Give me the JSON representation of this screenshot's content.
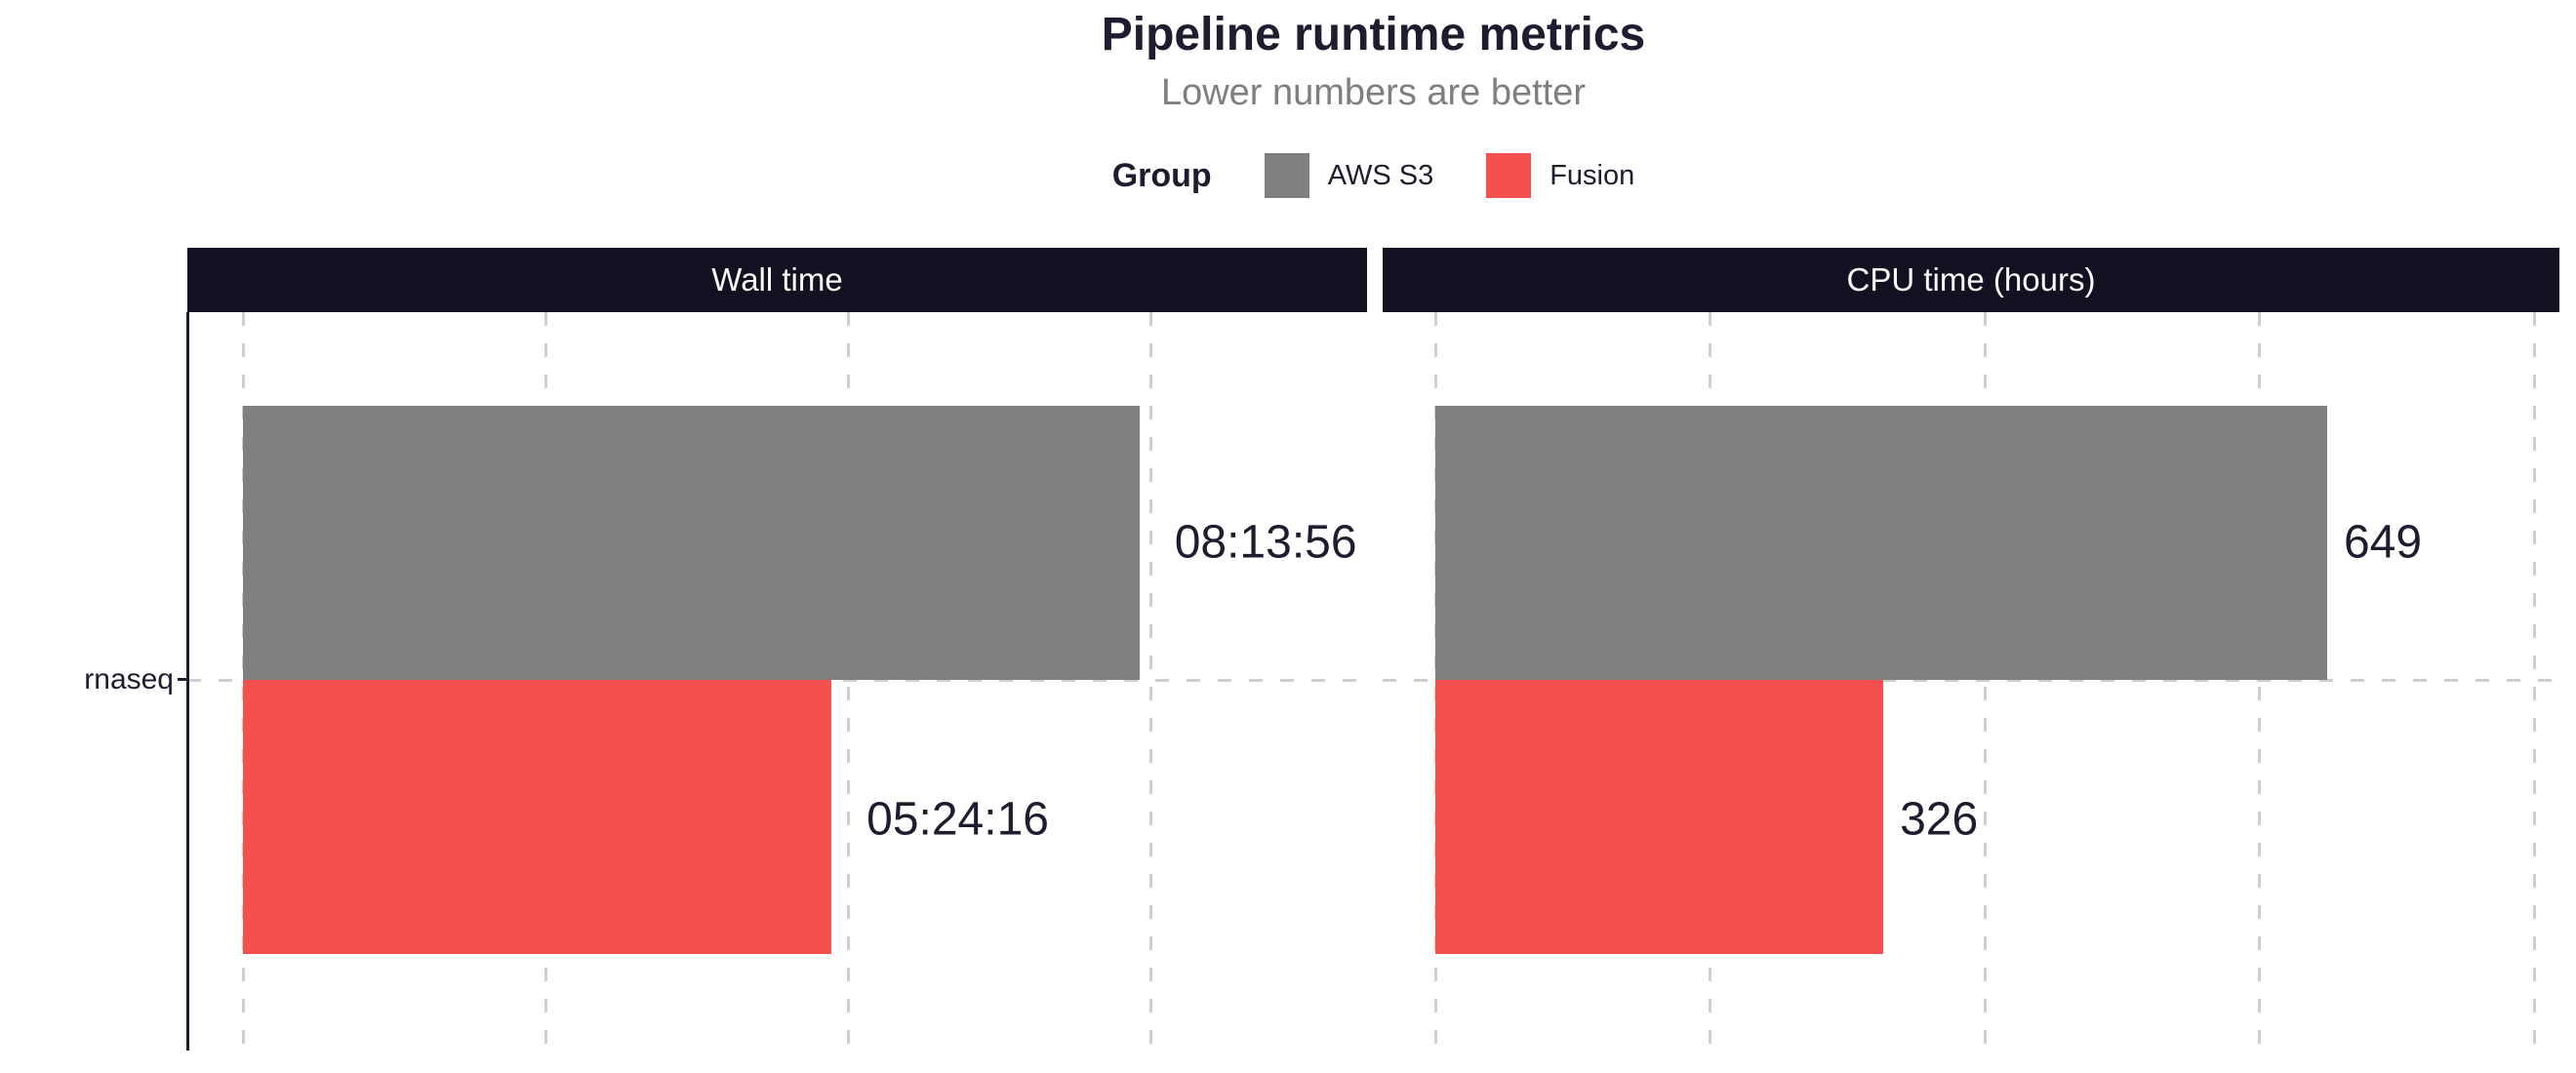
{
  "chart": {
    "title": "Pipeline runtime metrics",
    "subtitle": "Lower numbers are better",
    "legend": {
      "title": "Group",
      "items": [
        {
          "label": "AWS S3",
          "color": "#808080"
        },
        {
          "label": "Fusion",
          "color": "#f4514e"
        }
      ]
    },
    "y_axis": {
      "category": "rnaseq"
    },
    "colors": {
      "background": "#ffffff",
      "strip_bg": "#131121",
      "strip_text": "#fafafa",
      "title_text": "#1e1c2f",
      "subtitle_text": "#7f7f7f",
      "gridline": "#cfcfcf",
      "axis": "#1e1c2f"
    }
  },
  "chart_data": [
    {
      "type": "bar",
      "orientation": "horizontal",
      "facet": "Wall time",
      "legend_position": "top",
      "grid": "dashed",
      "categories": [
        "rnaseq"
      ],
      "series": [
        {
          "name": "AWS S3",
          "color": "#808080",
          "values": [
            "08:13:56"
          ],
          "seconds": [
            29636
          ]
        },
        {
          "name": "Fusion",
          "color": "#f4514e",
          "values": [
            "05:24:16"
          ],
          "seconds": [
            19456
          ]
        }
      ],
      "x_unit": "seconds",
      "xlim": [
        0,
        37200
      ],
      "gridlines": [
        0,
        10000,
        20000,
        30000
      ]
    },
    {
      "type": "bar",
      "orientation": "horizontal",
      "facet": "CPU time (hours)",
      "legend_position": "top",
      "grid": "dashed",
      "categories": [
        "rnaseq"
      ],
      "series": [
        {
          "name": "AWS S3",
          "color": "#808080",
          "values": [
            649
          ]
        },
        {
          "name": "Fusion",
          "color": "#f4514e",
          "values": [
            326
          ]
        }
      ],
      "x_unit": "hours",
      "xlim": [
        0,
        818
      ],
      "gridlines": [
        0,
        200,
        400,
        600,
        800
      ]
    }
  ]
}
